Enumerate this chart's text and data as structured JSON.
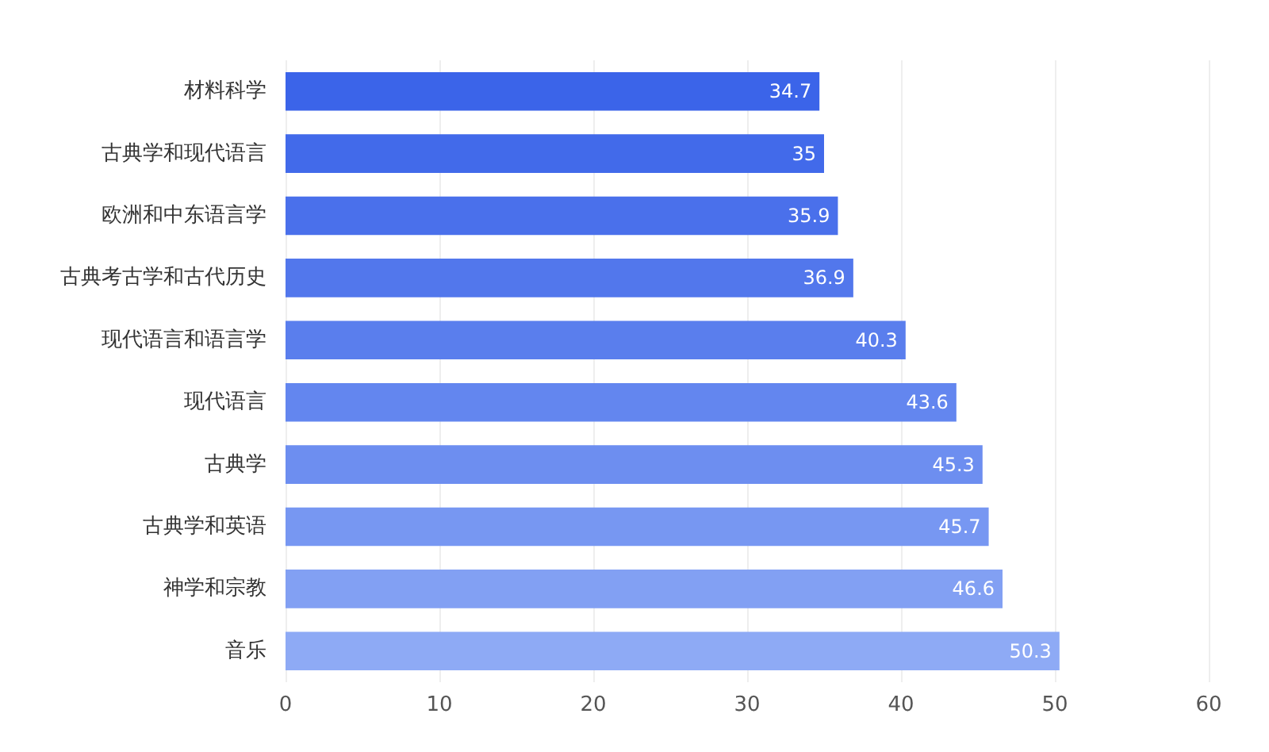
{
  "chart_data": {
    "type": "bar",
    "orientation": "horizontal",
    "categories": [
      "材料科学",
      "古典学和现代语言",
      "欧洲和中东语言学",
      "古典考古学和古代历史",
      "现代语言和语言学",
      "现代语言",
      "古典学",
      "古典学和英语",
      "神学和宗教",
      "音乐"
    ],
    "values": [
      34.7,
      35,
      35.9,
      36.9,
      40.3,
      43.6,
      45.3,
      45.7,
      46.6,
      50.3
    ],
    "colors": [
      "#3b64e9",
      "#426aea",
      "#4a70eb",
      "#5277ec",
      "#5a7eed",
      "#6386ef",
      "#6d8ef0",
      "#7797f2",
      "#82a0f3",
      "#8eaaf5"
    ],
    "xlim": [
      0,
      60
    ],
    "xticks": [
      0,
      10,
      20,
      30,
      40,
      50,
      60
    ],
    "grid": "x",
    "data_labels": true
  }
}
